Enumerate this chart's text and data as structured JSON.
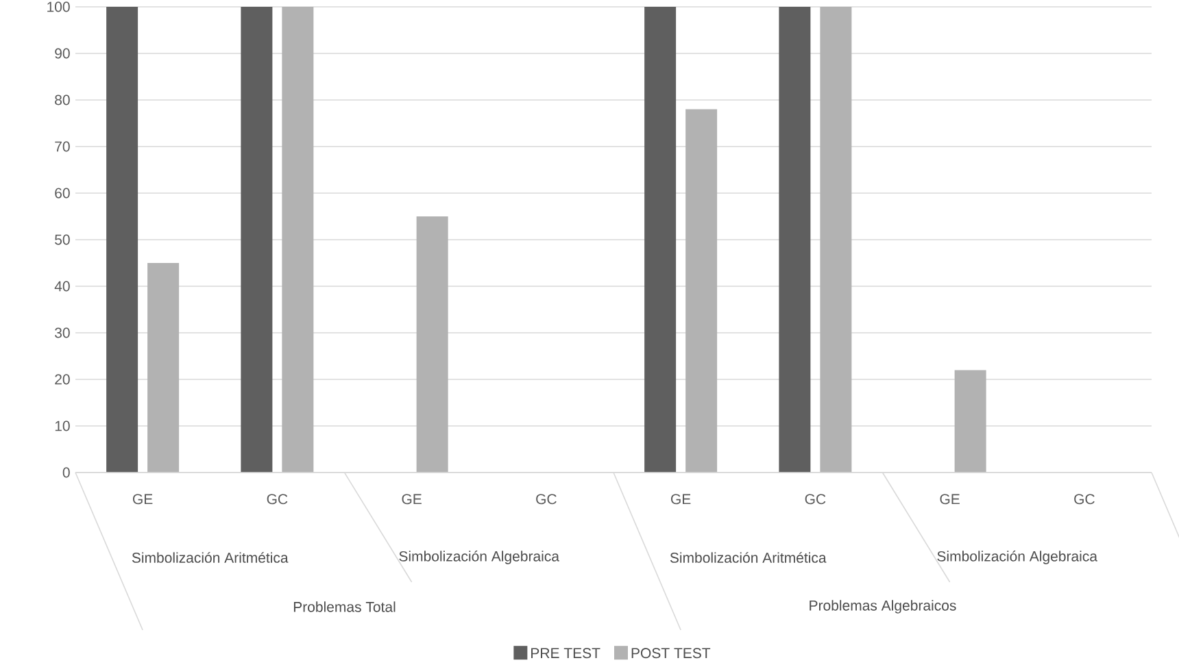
{
  "chart_data": {
    "type": "bar",
    "categories": [
      "GE",
      "GC",
      "GE",
      "GC",
      "GE",
      "GC",
      "GE",
      "GC"
    ],
    "series": [
      {
        "name": "PRE TEST",
        "color": "#5f5f5f",
        "values": [
          100,
          100,
          0,
          0,
          100,
          100,
          0,
          0
        ]
      },
      {
        "name": "POST TEST",
        "color": "#b2b2b2",
        "values": [
          45,
          100,
          55,
          0,
          78,
          100,
          22,
          0
        ]
      }
    ],
    "ylim": [
      0,
      100
    ],
    "yticks": [
      0,
      10,
      20,
      30,
      40,
      50,
      60,
      70,
      80,
      90,
      100
    ],
    "grid": "y",
    "legend": "bottom",
    "annotations": [
      "Simbolización Aritmética",
      "Simbolización Algebraica",
      "Simbolización Aritmética",
      "Simbolización Algebraica",
      "Problemas Total",
      "Problemas Algebraicos"
    ]
  }
}
